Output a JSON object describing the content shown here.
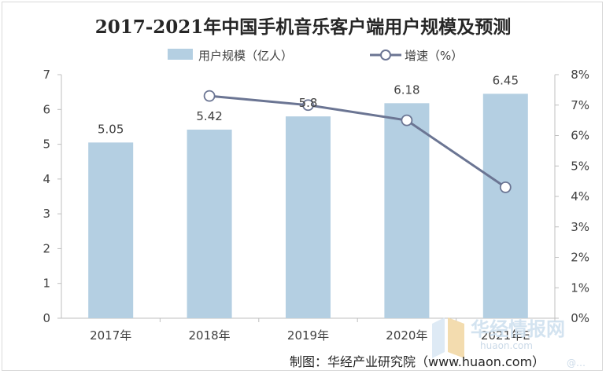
{
  "chart_data": {
    "type": "bar",
    "title": "2017-2021年中国手机音乐客户端用户规模及预测",
    "categories": [
      "2017年",
      "2018年",
      "2019年",
      "2020年",
      "2021年E"
    ],
    "series": [
      {
        "name": "用户规模（亿人）",
        "type": "bar",
        "axis": "left",
        "values": [
          5.05,
          5.42,
          5.8,
          6.18,
          6.45
        ],
        "color": "#b4cfe2"
      },
      {
        "name": "增速（%）",
        "type": "line",
        "axis": "right",
        "values": [
          null,
          7.3,
          7.0,
          6.5,
          4.3
        ],
        "color": "#6b7593"
      }
    ],
    "data_labels": [
      "5.05",
      "5.42",
      "5.8",
      "6.18",
      "6.45"
    ],
    "y_left": {
      "min": 0,
      "max": 7,
      "ticks": [
        "0",
        "1",
        "2",
        "3",
        "4",
        "5",
        "6",
        "7"
      ]
    },
    "y_right": {
      "min": 0,
      "max": 8,
      "ticks": [
        "0%",
        "1%",
        "2%",
        "3%",
        "4%",
        "5%",
        "6%",
        "7%",
        "8%"
      ]
    },
    "legend_position": "top-center",
    "grid": false
  },
  "source_text": "制图：华经产业研究院（www.huaon.com）",
  "watermark": {
    "brand": "华经情报网",
    "url": "huaon.com",
    "corner_text": "@…"
  }
}
